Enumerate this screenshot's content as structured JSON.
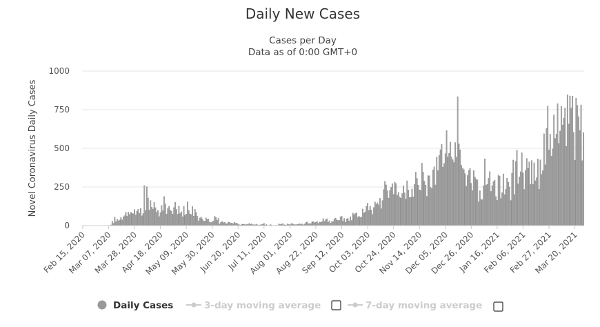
{
  "chart_data": {
    "type": "bar",
    "title": "Daily New Cases",
    "subtitle_line1": "Cases per Day",
    "subtitle_line2": "Data as of 0:00 GMT+0",
    "ylabel": "Novel Coronavirus Daily Cases",
    "xlabel": "",
    "ylim": [
      0,
      1000
    ],
    "yticks": [
      "0",
      "250",
      "500",
      "750",
      "1000"
    ],
    "ytick_values": [
      0,
      250,
      500,
      750,
      1000
    ],
    "start_date": "2020-02-15",
    "tick_labels": [
      "Feb 15, 2020",
      "Mar 07, 2020",
      "Mar 28, 2020",
      "Apr 18, 2020",
      "May 09, 2020",
      "May 30, 2020",
      "Jun 20, 2020",
      "Jul 11, 2020",
      "Aug 01, 2020",
      "Aug 22, 2020",
      "Sep 12, 2020",
      "Oct 03, 2020",
      "Oct 24, 2020",
      "Nov 14, 2020",
      "Dec 05, 2020",
      "Dec 26, 2020",
      "Jan 16, 2021",
      "Feb 06, 2021",
      "Feb 27, 2021",
      "Mar 20, 2021"
    ],
    "tick_day_offsets": [
      0,
      21,
      42,
      63,
      84,
      105,
      126,
      147,
      168,
      189,
      210,
      231,
      252,
      273,
      294,
      315,
      336,
      357,
      378,
      399
    ],
    "grid": true,
    "legend_position": "bottom",
    "series": [
      {
        "name": "Daily Cases",
        "values": [
          0,
          0,
          0,
          0,
          0,
          0,
          0,
          0,
          0,
          0,
          0,
          0,
          0,
          0,
          0,
          0,
          0,
          0,
          0,
          0,
          0,
          0,
          1,
          4,
          28,
          15,
          55,
          25,
          41,
          31,
          36,
          52,
          37,
          57,
          64,
          86,
          60,
          87,
          72,
          87,
          79,
          76,
          104,
          69,
          93,
          106,
          79,
          111,
          63,
          77,
          259,
          97,
          251,
          178,
          100,
          162,
          119,
          107,
          150,
          116,
          86,
          98,
          58,
          84,
          130,
          96,
          188,
          140,
          74,
          110,
          125,
          100,
          92,
          74,
          117,
          151,
          105,
          73,
          127,
          78,
          89,
          57,
          124,
          67,
          74,
          153,
          98,
          75,
          71,
          123,
          61,
          105,
          84,
          60,
          31,
          49,
          55,
          43,
          30,
          29,
          50,
          40,
          42,
          21,
          19,
          24,
          30,
          60,
          52,
          34,
          47,
          10,
          20,
          26,
          19,
          21,
          13,
          12,
          22,
          22,
          15,
          16,
          12,
          21,
          15,
          15,
          10,
          5,
          3,
          8,
          9,
          8,
          5,
          9,
          6,
          14,
          8,
          11,
          5,
          6,
          5,
          9,
          4,
          2,
          5,
          6,
          8,
          15,
          3,
          7,
          1,
          1,
          6,
          4,
          0,
          0,
          1,
          2,
          1,
          11,
          7,
          9,
          13,
          5,
          5,
          3,
          11,
          8,
          5,
          12,
          13,
          8,
          5,
          6,
          7,
          9,
          12,
          7,
          11,
          5,
          10,
          20,
          24,
          12,
          13,
          13,
          25,
          25,
          19,
          21,
          26,
          14,
          23,
          21,
          25,
          45,
          28,
          39,
          44,
          22,
          31,
          15,
          25,
          26,
          44,
          48,
          36,
          33,
          34,
          57,
          60,
          28,
          46,
          22,
          43,
          46,
          30,
          57,
          33,
          81,
          71,
          78,
          82,
          54,
          60,
          53,
          55,
          107,
          80,
          89,
          126,
          145,
          98,
          125,
          101,
          72,
          117,
          153,
          138,
          148,
          134,
          176,
          109,
          162,
          233,
          286,
          263,
          226,
          178,
          227,
          247,
          271,
          202,
          281,
          272,
          196,
          215,
          185,
          177,
          207,
          257,
          212,
          172,
          290,
          230,
          182,
          183,
          237,
          186,
          266,
          346,
          305,
          262,
          231,
          228,
          404,
          346,
          287,
          262,
          189,
          323,
          322,
          247,
          240,
          361,
          380,
          263,
          443,
          356,
          454,
          491,
          526,
          378,
          402,
          465,
          615,
          444,
          467,
          540,
          443,
          426,
          408,
          537,
          443,
          834,
          528,
          490,
          390,
          371,
          362,
          336,
          255,
          324,
          356,
          369,
          273,
          227,
          356,
          313,
          300,
          295,
          154,
          225,
          169,
          167,
          257,
          432,
          261,
          267,
          306,
          349,
          221,
          258,
          284,
          294,
          188,
          163,
          327,
          320,
          175,
          213,
          334,
          201,
          236,
          307,
          281,
          250,
          162,
          338,
          424,
          201,
          415,
          488,
          270,
          315,
          348,
          471,
          341,
          234,
          358,
          434,
          370,
          412,
          266,
          421,
          266,
          406,
          290,
          310,
          431,
          235,
          425,
          331,
          355,
          594,
          393,
          629,
          774,
          490,
          591,
          449,
          496,
          716,
          564,
          592,
          789,
          531,
          612,
          771,
          651,
          696,
          761,
          512,
          846,
          657,
          839,
          761,
          838,
          603,
          422,
          825,
          778,
          705,
          615,
          781,
          420,
          602
        ]
      },
      {
        "name": "3-day moving average",
        "values": []
      },
      {
        "name": "7-day moving average",
        "values": []
      }
    ]
  },
  "legend": {
    "daily_cases_label": "Daily Cases",
    "ma3_label": "3-day moving average",
    "ma7_label": "7-day moving average",
    "daily_color": "#999999",
    "inactive_color": "#cccccc"
  }
}
